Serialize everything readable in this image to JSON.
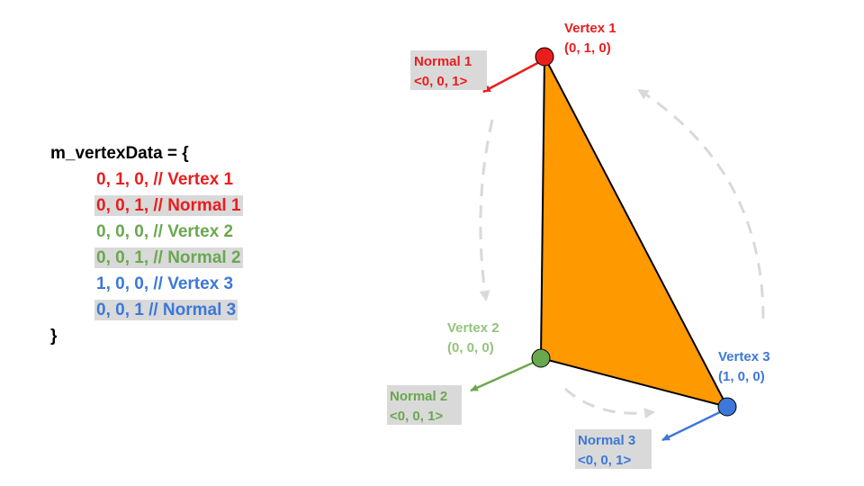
{
  "colors": {
    "vertex1": "#ea1d1d",
    "vertex2": "#6aa84f",
    "vertex3": "#3c78d8",
    "triangle_fill": "#ff9900",
    "label_bg": "#d9d9d9",
    "arrow_dashed": "#d9d9d9"
  },
  "code": {
    "open": "m_vertexData = {",
    "lines": [
      {
        "text": "0, 1, 0, // Vertex 1",
        "color": "#ea1d1d",
        "highlight": false
      },
      {
        "text": "0, 0, 1, // Normal 1",
        "color": "#ea1d1d",
        "highlight": true
      },
      {
        "text": "0, 0, 0, // Vertex 2",
        "color": "#6aa84f",
        "highlight": false
      },
      {
        "text": "0, 0, 1, // Normal 2",
        "color": "#6aa84f",
        "highlight": true
      },
      {
        "text": "1, 0, 0, // Vertex 3",
        "color": "#3c78d8",
        "highlight": false
      },
      {
        "text": "0, 0, 1 // Normal 3",
        "color": "#3c78d8",
        "highlight": true
      }
    ],
    "close": "}"
  },
  "vertices": [
    {
      "name": "Vertex 1",
      "coords": "(0, 1, 0)",
      "normal_name": "Normal 1",
      "normal_vec": "<0, 0, 1>"
    },
    {
      "name": "Vertex 2",
      "coords": "(0, 0, 0)",
      "normal_name": "Normal 2",
      "normal_vec": "<0, 0, 1>"
    },
    {
      "name": "Vertex 3",
      "coords": "(1, 0, 0)",
      "normal_name": "Normal 3",
      "normal_vec": "<0, 0, 1>"
    }
  ]
}
